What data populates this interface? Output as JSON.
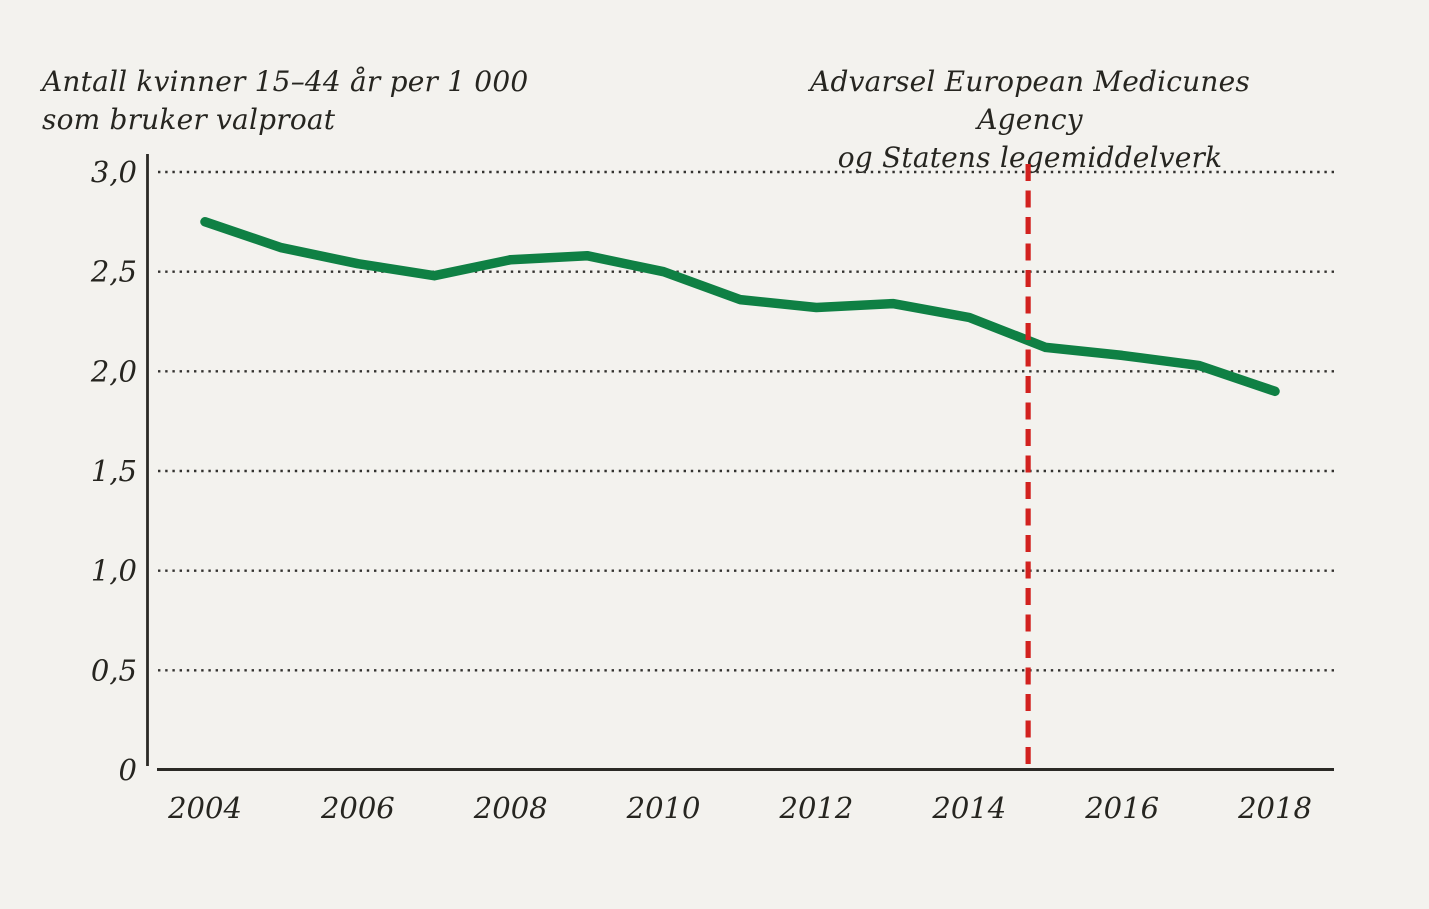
{
  "page": {
    "background": "#f3f2ee"
  },
  "chart_data": {
    "type": "line",
    "title": "Antall kvinner 15–44 år per 1 000 som bruker valproat",
    "title_lines": [
      "Antall kvinner 15–44 år per 1 000",
      "som bruker valproat"
    ],
    "annotation_lines": [
      "Advarsel European Medicunes Agency",
      "og Statens legemiddelverk"
    ],
    "x": [
      2004,
      2005,
      2006,
      2007,
      2008,
      2009,
      2010,
      2011,
      2012,
      2013,
      2014,
      2015,
      2016,
      2017,
      2018
    ],
    "series": [
      {
        "name": "Antall kvinner 15–44 år per 1 000 som bruker valproat",
        "color": "#0f8044",
        "values": [
          2.75,
          2.62,
          2.54,
          2.48,
          2.56,
          2.58,
          2.5,
          2.36,
          2.32,
          2.34,
          2.27,
          2.12,
          2.08,
          2.03,
          1.9
        ]
      }
    ],
    "event_line": {
      "x": 2014.77,
      "style": "dashed",
      "color": "#d2221f",
      "label": "Advarsel European Medicunes Agency og Statens legemiddelverk"
    },
    "xticks": [
      {
        "value": 2004,
        "label": "2004"
      },
      {
        "value": 2006,
        "label": "2006"
      },
      {
        "value": 2008,
        "label": "2008"
      },
      {
        "value": 2010,
        "label": "2010"
      },
      {
        "value": 2012,
        "label": "2012"
      },
      {
        "value": 2014,
        "label": "2014"
      },
      {
        "value": 2016,
        "label": "2016"
      },
      {
        "value": 2018,
        "label": "2018"
      }
    ],
    "yticks": [
      {
        "value": 3.0,
        "label": "3,0"
      },
      {
        "value": 2.5,
        "label": "2,5"
      },
      {
        "value": 2.0,
        "label": "2,0"
      },
      {
        "value": 1.5,
        "label": "1,5"
      },
      {
        "value": 1.0,
        "label": "1,0"
      },
      {
        "value": 0.5,
        "label": "0,5"
      },
      {
        "value": 0.0,
        "label": "0"
      }
    ],
    "xlim": [
      2003.4,
      2018.8
    ],
    "ylim": [
      0,
      3.0
    ],
    "grid": {
      "horizontal": "dotted",
      "vertical": "none"
    },
    "legend": "none",
    "colors": {
      "axis": "#2b2a26",
      "grid": "#343330",
      "text": "#262520",
      "background": "#f3f2ee"
    }
  }
}
